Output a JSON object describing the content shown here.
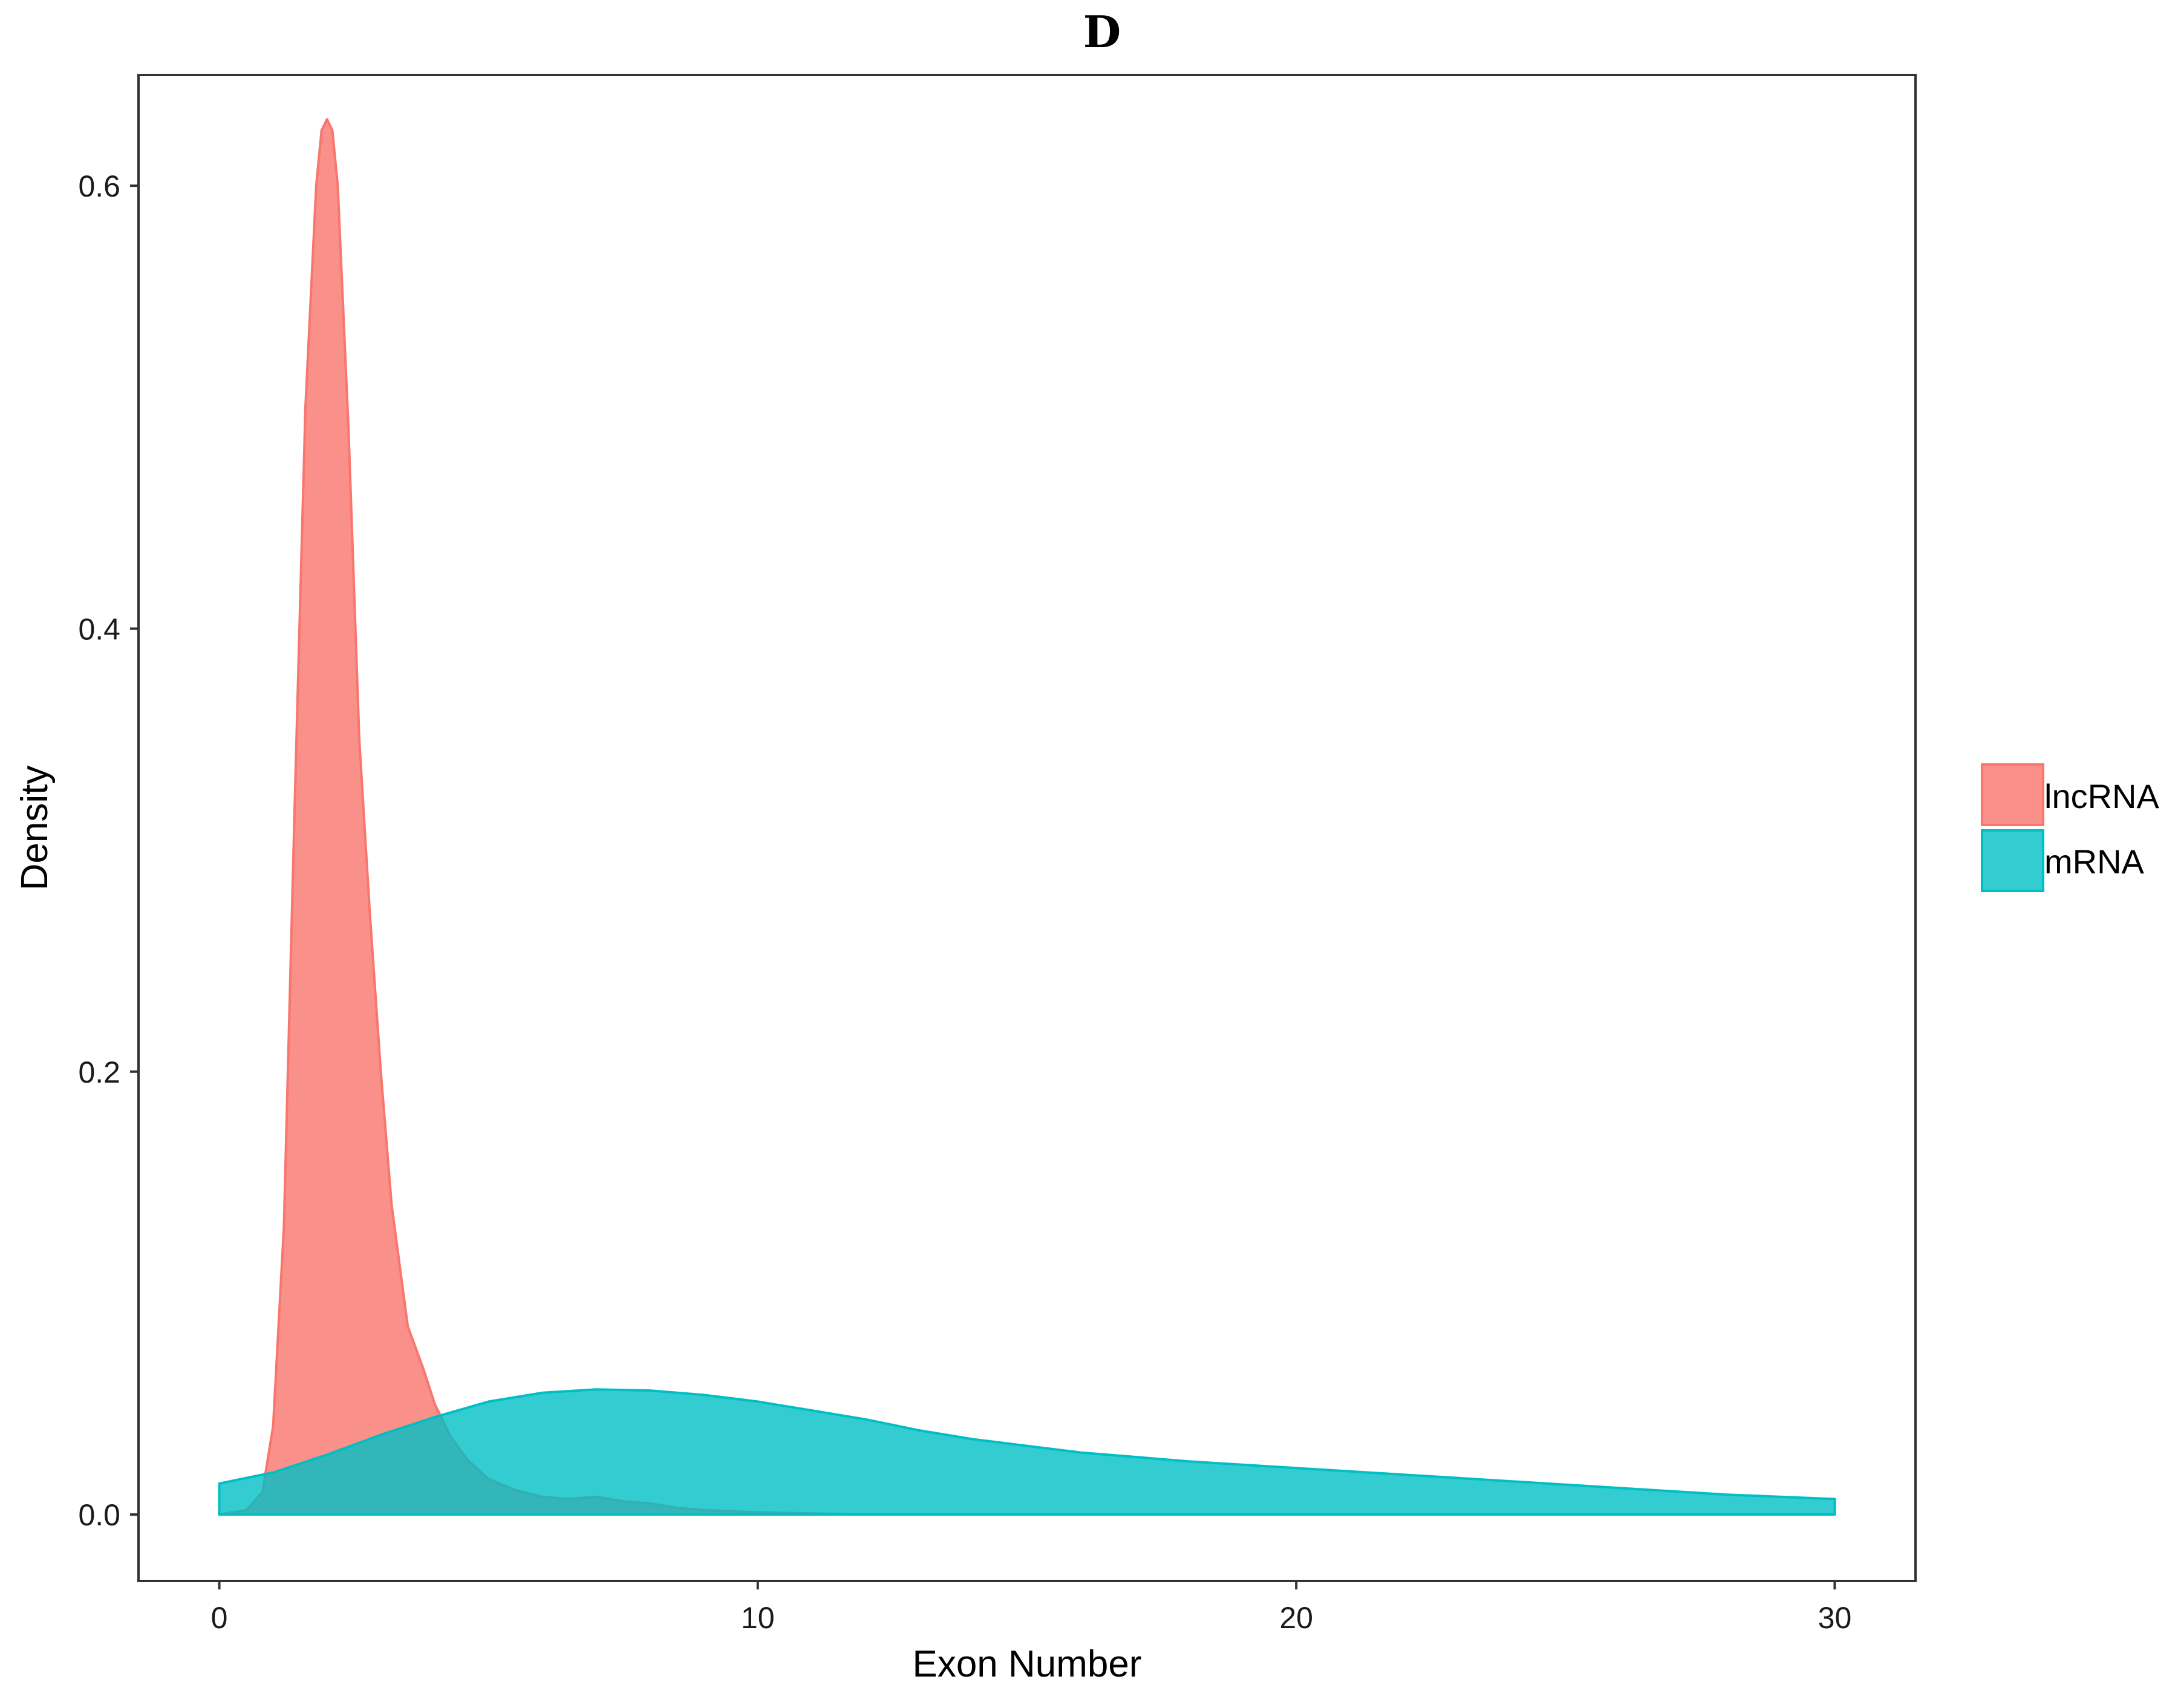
{
  "chart_data": {
    "type": "area",
    "title": "D",
    "xlabel": "Exon Number",
    "ylabel": "Density",
    "xlim": [
      -1.5,
      31.5
    ],
    "ylim": [
      -0.03,
      0.65
    ],
    "x_ticks": [
      0,
      10,
      20,
      30
    ],
    "x_tick_labels": [
      "0",
      "10",
      "20",
      "30"
    ],
    "y_ticks": [
      0.0,
      0.2,
      0.4,
      0.6
    ],
    "y_tick_labels": [
      "0.0",
      "0.2",
      "0.4",
      "0.6"
    ],
    "grid": false,
    "legend_position": "right",
    "series": [
      {
        "name": "lncRNA",
        "color": "#F8766D",
        "x": [
          0,
          0.5,
          0.8,
          1.0,
          1.2,
          1.4,
          1.6,
          1.8,
          1.9,
          2.0,
          2.1,
          2.2,
          2.4,
          2.6,
          2.8,
          3.0,
          3.2,
          3.5,
          3.8,
          4.0,
          4.3,
          4.6,
          5.0,
          5.5,
          6.0,
          6.5,
          7.0,
          7.5,
          8.0,
          8.5,
          9.0,
          10.0,
          11.0,
          12.0,
          14.0,
          16.0,
          20.0,
          25.0,
          30.0
        ],
        "y": [
          0.0,
          0.002,
          0.01,
          0.04,
          0.13,
          0.32,
          0.5,
          0.6,
          0.625,
          0.63,
          0.625,
          0.6,
          0.49,
          0.35,
          0.27,
          0.2,
          0.14,
          0.085,
          0.065,
          0.05,
          0.035,
          0.025,
          0.016,
          0.011,
          0.008,
          0.007,
          0.008,
          0.006,
          0.005,
          0.003,
          0.002,
          0.001,
          0.0005,
          0.0,
          0.0,
          0.0,
          0.0,
          0.0,
          0.0
        ]
      },
      {
        "name": "mRNA",
        "color": "#00BFC4",
        "x": [
          0,
          1,
          2,
          3,
          4,
          5,
          6,
          7,
          8,
          9,
          10,
          11,
          12,
          13,
          14,
          15,
          16,
          17,
          18,
          20,
          22,
          24,
          26,
          28,
          30
        ],
        "y": [
          0.014,
          0.019,
          0.027,
          0.036,
          0.044,
          0.051,
          0.055,
          0.0565,
          0.056,
          0.054,
          0.051,
          0.047,
          0.043,
          0.038,
          0.034,
          0.031,
          0.028,
          0.026,
          0.024,
          0.021,
          0.018,
          0.015,
          0.012,
          0.009,
          0.007
        ]
      }
    ]
  }
}
